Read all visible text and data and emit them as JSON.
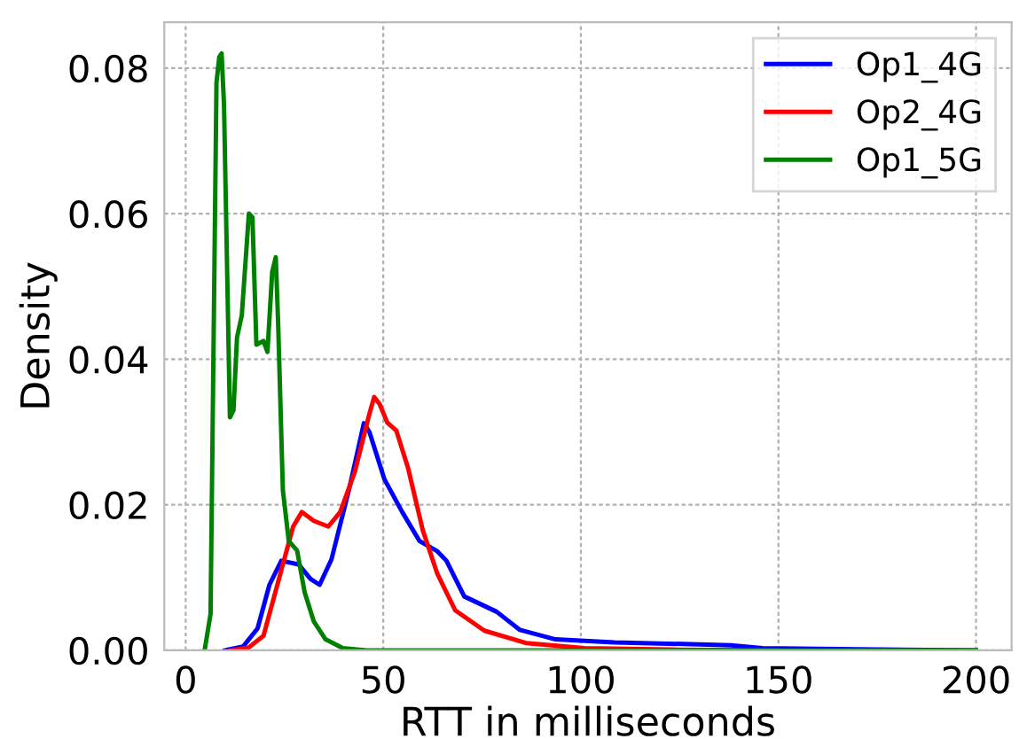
{
  "chart_data": {
    "type": "line",
    "xlabel": "RTT in milliseconds",
    "ylabel": "Density",
    "xlim": [
      -5.4,
      209
    ],
    "ylim": [
      0,
      0.0863
    ],
    "xticks": [
      0,
      50,
      100,
      150,
      200
    ],
    "yticks": [
      {
        "value": 0,
        "label": "0.00"
      },
      {
        "value": 0.02,
        "label": "0.02"
      },
      {
        "value": 0.04,
        "label": "0.04"
      },
      {
        "value": 0.06,
        "label": "0.06"
      },
      {
        "value": 0.08,
        "label": "0.08"
      }
    ],
    "grid": true,
    "legend": "top right",
    "series": [
      {
        "name": "Op1_4G",
        "color": "#0000ff",
        "x": [
          10,
          14.5,
          18.2,
          21.2,
          24.2,
          28.6,
          31.6,
          33.9,
          36.9,
          41.3,
          45.1,
          46.5,
          50.3,
          54.8,
          59.2,
          63.7,
          66,
          70.5,
          78.7,
          84.6,
          93.6,
          108.5,
          138,
          146,
          160,
          200
        ],
        "values": [
          0,
          0.0005,
          0.003,
          0.009,
          0.0123,
          0.0118,
          0.0098,
          0.009,
          0.0125,
          0.022,
          0.0312,
          0.03,
          0.0235,
          0.019,
          0.015,
          0.0136,
          0.0123,
          0.0074,
          0.0053,
          0.0028,
          0.0015,
          0.0011,
          0.0007,
          0.0003,
          0.0002,
          0
        ]
      },
      {
        "name": "Op2_4G",
        "color": "#ff0000",
        "x": [
          11.5,
          16,
          19.7,
          24.2,
          27.2,
          29.4,
          32.4,
          36.1,
          39.1,
          42.8,
          46.5,
          47.7,
          49.1,
          51,
          53.3,
          56.3,
          60,
          63.7,
          68.2,
          75.6,
          86.1,
          101,
          123,
          150
        ],
        "values": [
          0,
          0.0004,
          0.002,
          0.011,
          0.017,
          0.019,
          0.0178,
          0.017,
          0.019,
          0.0245,
          0.0325,
          0.0348,
          0.0338,
          0.0313,
          0.0302,
          0.025,
          0.0165,
          0.0105,
          0.0055,
          0.0027,
          0.001,
          0.0003,
          0.0001,
          0
        ]
      },
      {
        "name": "Op1_5G",
        "color": "#008000",
        "x": [
          4.8,
          6.3,
          7.8,
          8.5,
          9.1,
          9.7,
          11.2,
          12.1,
          13,
          14.2,
          16,
          16.9,
          17.9,
          19.7,
          20.7,
          21.9,
          22.8,
          23.4,
          24.6,
          26.1,
          28.2,
          30.1,
          32.4,
          35.4,
          39.8,
          45.8,
          200
        ],
        "values": [
          0,
          0.005,
          0.078,
          0.0815,
          0.082,
          0.075,
          0.032,
          0.033,
          0.043,
          0.046,
          0.06,
          0.0595,
          0.042,
          0.0425,
          0.041,
          0.052,
          0.054,
          0.045,
          0.022,
          0.015,
          0.0137,
          0.008,
          0.004,
          0.0015,
          0.0003,
          0,
          0
        ]
      }
    ]
  }
}
